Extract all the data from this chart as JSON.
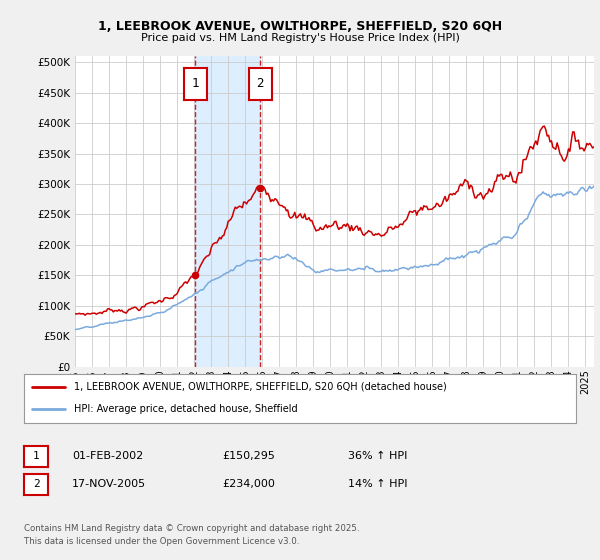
{
  "title1": "1, LEEBROOK AVENUE, OWLTHORPE, SHEFFIELD, S20 6QH",
  "title2": "Price paid vs. HM Land Registry's House Price Index (HPI)",
  "ylabel_ticks": [
    0,
    50000,
    100000,
    150000,
    200000,
    250000,
    300000,
    350000,
    400000,
    450000,
    500000
  ],
  "ylim": [
    0,
    510000
  ],
  "xlim_start": 1995.0,
  "xlim_end": 2025.5,
  "legend_line1": "1, LEEBROOK AVENUE, OWLTHORPE, SHEFFIELD, S20 6QH (detached house)",
  "legend_line2": "HPI: Average price, detached house, Sheffield",
  "transaction1_date": "01-FEB-2002",
  "transaction1_price": "£150,295",
  "transaction1_hpi": "36% ↑ HPI",
  "transaction2_date": "17-NOV-2005",
  "transaction2_price": "£234,000",
  "transaction2_hpi": "14% ↑ HPI",
  "footer": "Contains HM Land Registry data © Crown copyright and database right 2025.\nThis data is licensed under the Open Government Licence v3.0.",
  "line_color_red": "#cc0000",
  "line_color_blue": "#7aaadd",
  "vline1_x": 2002.08,
  "vline2_x": 2005.88,
  "shade_color": "#ddeeff",
  "background_color": "#f0f0f0",
  "plot_bg": "#ffffff",
  "grid_color": "#cccccc"
}
